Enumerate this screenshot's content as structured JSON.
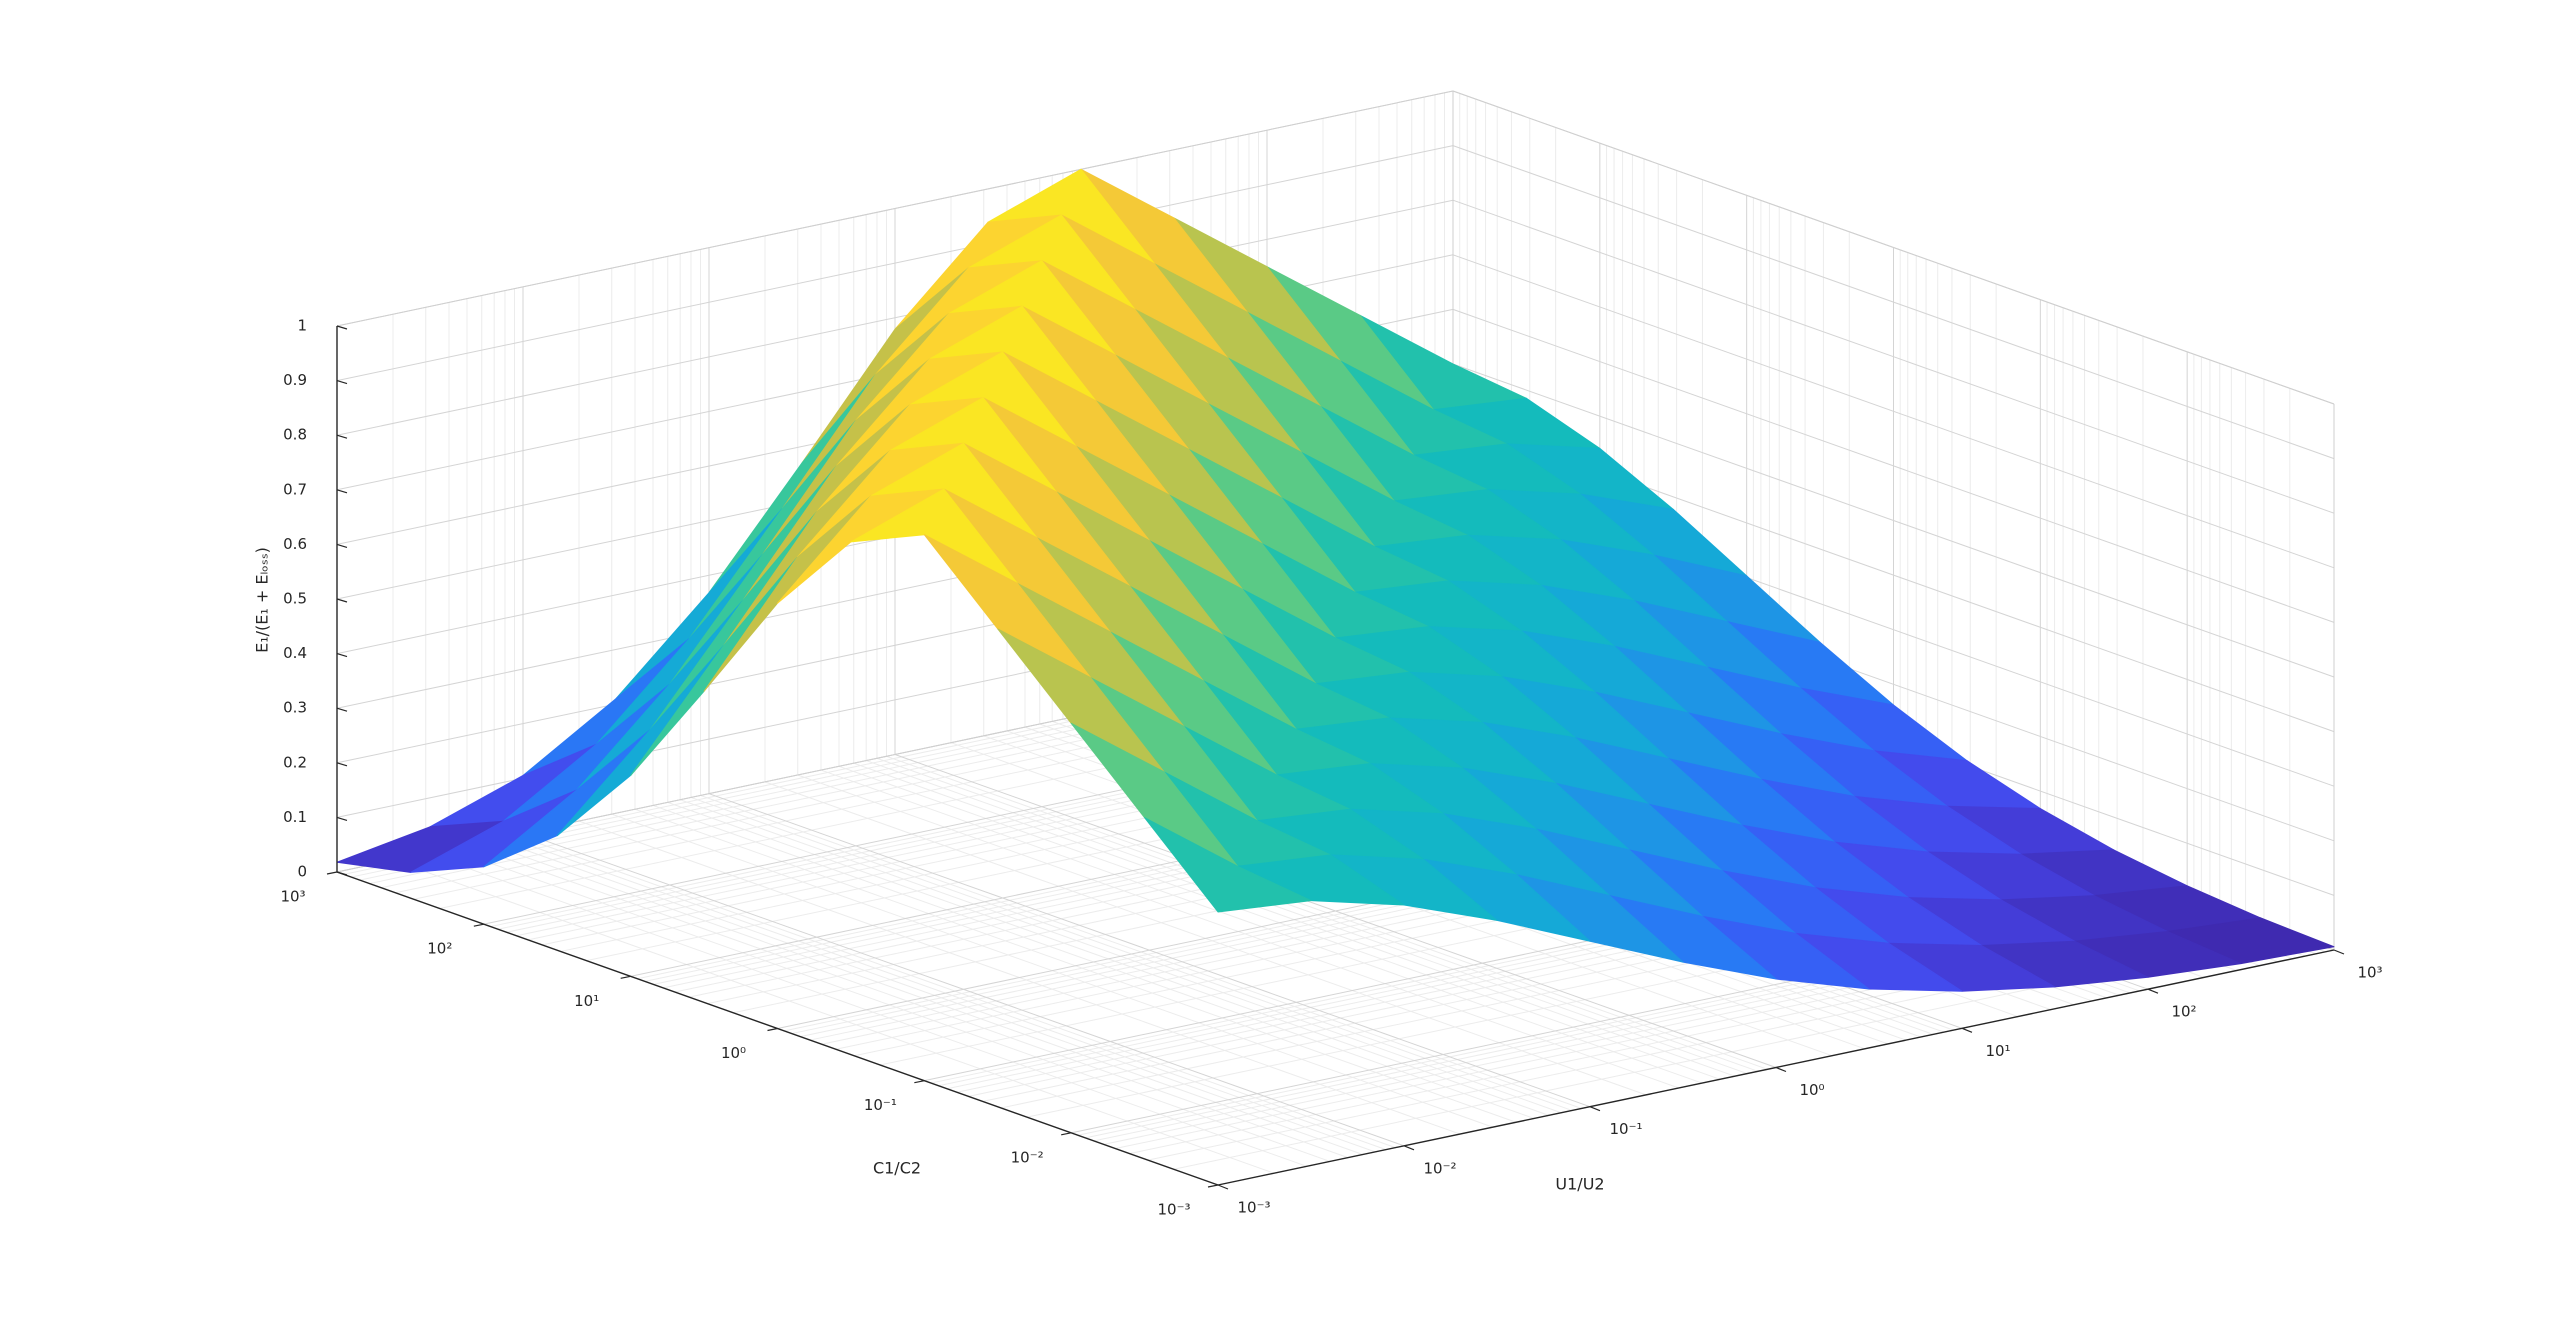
{
  "chart_data": {
    "type": "surface",
    "xlabel": "U1/U2",
    "ylabel": "C1/C2",
    "zlabel": "E₁/(E₁ + Eₗₒₛₛ)",
    "xscale": "log",
    "yscale": "log",
    "colormap": "parula",
    "grid": true,
    "minor_grid": true,
    "xlim": [
      0.001,
      1000
    ],
    "ylim": [
      0.001,
      1000
    ],
    "zlim": [
      0,
      1
    ],
    "xticks": [
      {
        "value": 0.001,
        "label": "10⁻³"
      },
      {
        "value": 0.01,
        "label": "10⁻²"
      },
      {
        "value": 0.1,
        "label": "10⁻¹"
      },
      {
        "value": 1,
        "label": "10⁰"
      },
      {
        "value": 10,
        "label": "10¹"
      },
      {
        "value": 100,
        "label": "10²"
      },
      {
        "value": 1000,
        "label": "10³"
      }
    ],
    "yticks": [
      {
        "value": 0.001,
        "label": "10⁻³"
      },
      {
        "value": 0.01,
        "label": "10⁻²"
      },
      {
        "value": 0.1,
        "label": "10⁻¹"
      },
      {
        "value": 1,
        "label": "10⁰"
      },
      {
        "value": 10,
        "label": "10¹"
      },
      {
        "value": 100,
        "label": "10²"
      },
      {
        "value": 1000,
        "label": "10³"
      }
    ],
    "zticks": [
      0,
      0.1,
      0.2,
      0.3,
      0.4,
      0.5,
      0.6,
      0.7,
      0.8,
      0.9,
      1
    ],
    "x": [
      0.001,
      0.003162,
      0.01,
      0.03162,
      0.1,
      0.3162,
      1,
      3.162,
      10,
      31.62,
      100,
      316.2,
      1000
    ],
    "y": [
      0.001,
      0.003162,
      0.01,
      0.03162,
      0.1,
      0.3162,
      1,
      3.162,
      10,
      31.62,
      100,
      316.2,
      1000
    ],
    "z": [
      [
        0.5,
        0.485,
        0.441,
        0.377,
        0.303,
        0.229,
        0.162,
        0.108,
        0.068,
        0.04,
        0.022,
        0.011,
        0.006
      ],
      [
        0.625,
        0.5,
        0.485,
        0.441,
        0.377,
        0.303,
        0.229,
        0.162,
        0.108,
        0.068,
        0.04,
        0.022,
        0.011
      ],
      [
        0.75,
        0.625,
        0.5,
        0.485,
        0.441,
        0.377,
        0.303,
        0.229,
        0.162,
        0.108,
        0.068,
        0.04,
        0.022
      ],
      [
        0.875,
        0.75,
        0.625,
        0.5,
        0.485,
        0.441,
        0.377,
        0.303,
        0.229,
        0.162,
        0.108,
        0.068,
        0.04
      ],
      [
        1,
        0.875,
        0.75,
        0.625,
        0.5,
        0.485,
        0.441,
        0.377,
        0.303,
        0.229,
        0.162,
        0.108,
        0.068
      ],
      [
        0.939,
        1,
        0.875,
        0.75,
        0.625,
        0.5,
        0.485,
        0.441,
        0.377,
        0.303,
        0.229,
        0.162,
        0.108
      ],
      [
        0.779,
        0.939,
        1,
        0.875,
        0.75,
        0.625,
        0.5,
        0.485,
        0.441,
        0.377,
        0.303,
        0.229,
        0.162
      ],
      [
        0.57,
        0.779,
        0.939,
        1,
        0.875,
        0.75,
        0.625,
        0.5,
        0.485,
        0.441,
        0.377,
        0.303,
        0.229
      ],
      [
        0.368,
        0.57,
        0.779,
        0.939,
        1,
        0.875,
        0.75,
        0.625,
        0.5,
        0.485,
        0.441,
        0.377,
        0.303
      ],
      [
        0.21,
        0.368,
        0.57,
        0.779,
        0.939,
        1,
        0.875,
        0.75,
        0.625,
        0.5,
        0.485,
        0.441,
        0.377
      ],
      [
        0.105,
        0.21,
        0.368,
        0.57,
        0.779,
        0.939,
        1,
        0.875,
        0.75,
        0.625,
        0.5,
        0.485,
        0.441
      ],
      [
        0.047,
        0.105,
        0.21,
        0.368,
        0.57,
        0.779,
        0.939,
        1,
        0.875,
        0.75,
        0.625,
        0.5,
        0.485
      ],
      [
        0.018,
        0.047,
        0.105,
        0.21,
        0.368,
        0.57,
        0.779,
        0.939,
        1,
        0.875,
        0.75,
        0.625,
        0.5
      ]
    ]
  }
}
